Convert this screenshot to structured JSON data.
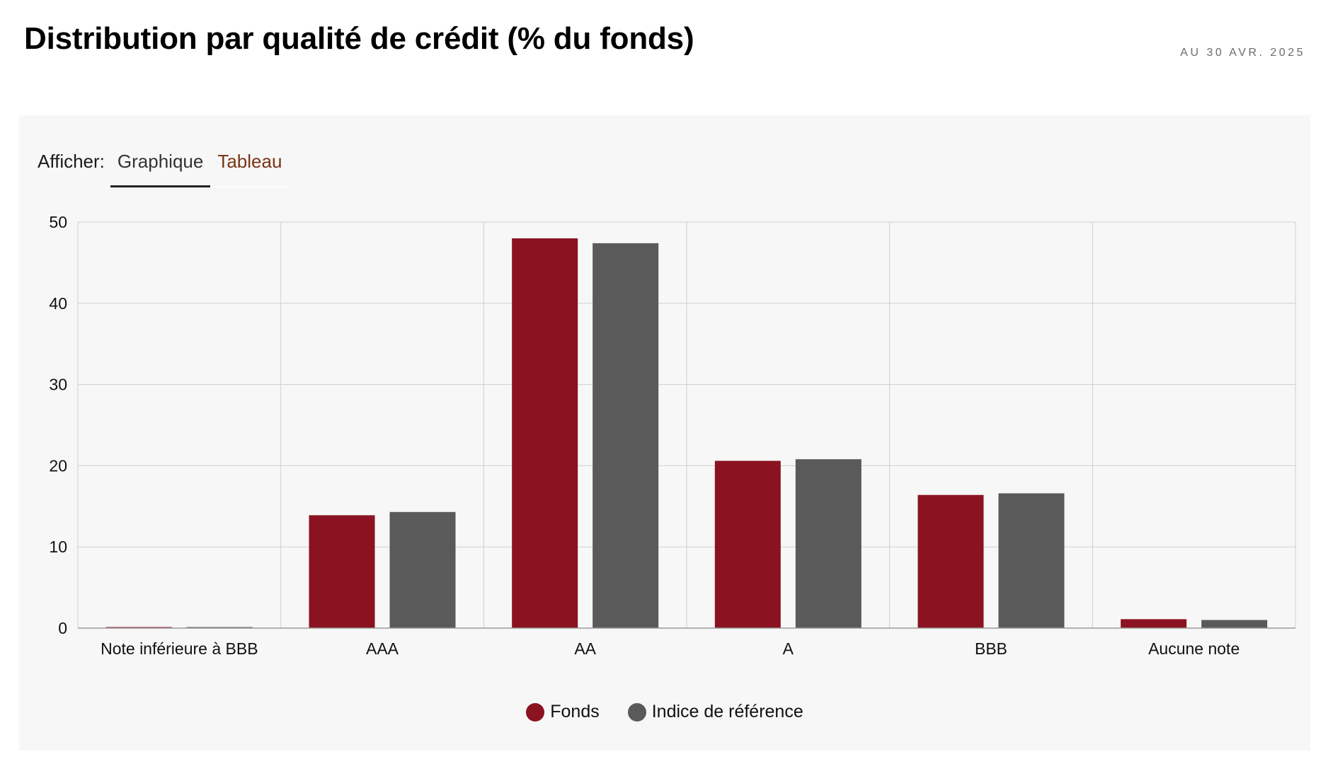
{
  "header": {
    "title": "Distribution par qualité de crédit (% du fonds)",
    "as_of": "AU 30 AVR. 2025"
  },
  "view_switch": {
    "label": "Afficher:",
    "tabs": [
      {
        "label": "Graphique",
        "active": true
      },
      {
        "label": "Tableau",
        "active": false
      }
    ]
  },
  "chart_data": {
    "type": "bar",
    "categories": [
      "Note inférieure à BBB",
      "AAA",
      "AA",
      "A",
      "BBB",
      "Aucune note"
    ],
    "series": [
      {
        "name": "Fonds",
        "color": "#8b1220",
        "values": [
          0.05,
          13.9,
          48.0,
          20.6,
          16.4,
          1.1
        ]
      },
      {
        "name": "Indice de référence",
        "color": "#5a5a5a",
        "values": [
          0.05,
          14.3,
          47.4,
          20.8,
          16.6,
          1.0
        ]
      }
    ],
    "ylim": [
      0,
      50
    ],
    "yticks": [
      0,
      10,
      20,
      30,
      40,
      50
    ],
    "grid": true,
    "legend_position": "bottom-center"
  }
}
